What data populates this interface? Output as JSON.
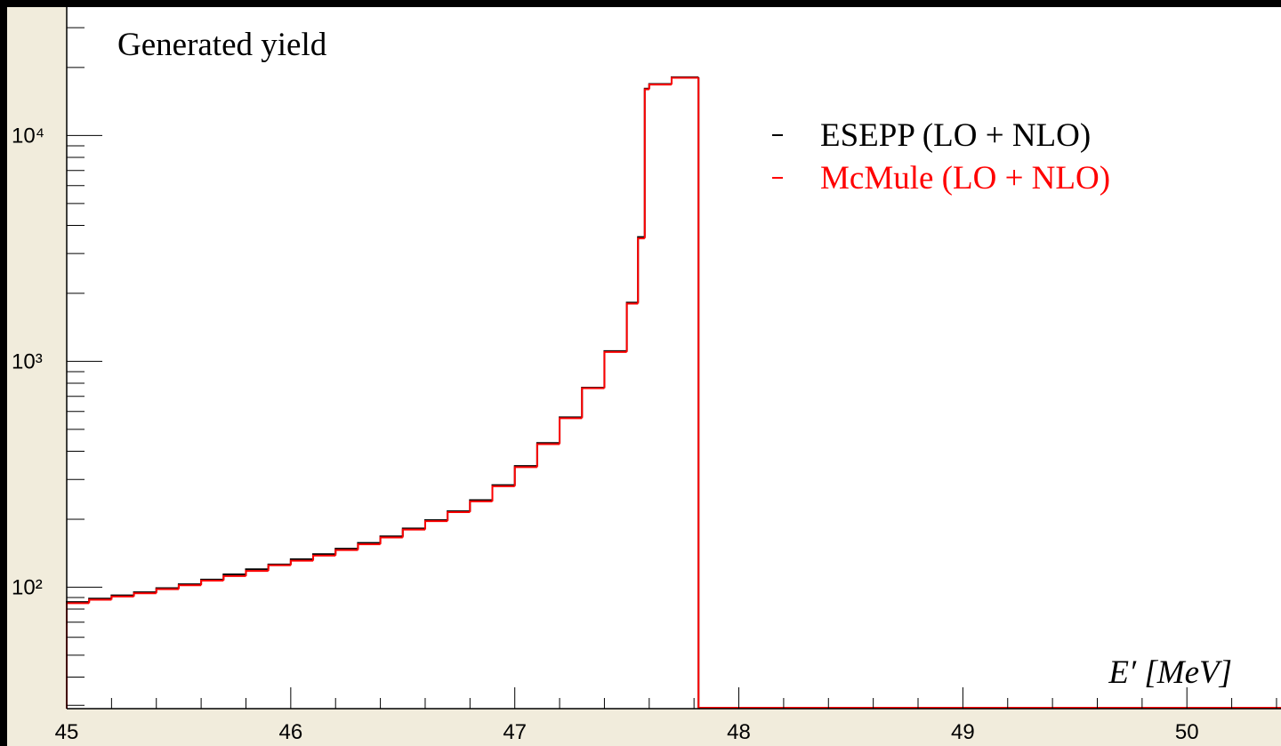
{
  "chart_data": {
    "type": "histogram",
    "title": "Generated yield",
    "x_label": "E′ [MeV]",
    "bins": [
      45.0,
      45.1,
      45.2,
      45.3,
      45.4,
      45.5,
      45.6,
      45.7,
      45.8,
      45.9,
      46.0,
      46.1,
      46.2,
      46.3,
      46.4,
      46.5,
      46.6,
      46.7,
      46.8,
      46.9,
      47.0,
      47.1,
      47.2,
      47.3,
      47.4,
      47.5,
      47.55,
      47.58,
      47.6,
      47.7,
      47.82
    ],
    "series": [
      {
        "name": "ESEPP (LO + NLO)",
        "color": "#000000",
        "values": [
          86,
          89,
          92,
          95,
          99,
          103,
          108,
          114,
          120,
          126,
          133,
          140,
          148,
          157,
          168,
          182,
          198,
          217,
          243,
          283,
          344,
          435,
          565,
          765,
          1110,
          1820,
          3550,
          16100,
          16900,
          18100
        ]
      },
      {
        "name": "McMule (LO + NLO)",
        "color": "#ff0000",
        "values": [
          85,
          88,
          91,
          94,
          98,
          102,
          107,
          112,
          118,
          125,
          131,
          138,
          146,
          155,
          166,
          180,
          196,
          215,
          240,
          280,
          340,
          430,
          560,
          760,
          1100,
          1800,
          3500,
          16000,
          16800,
          18000
        ]
      }
    ],
    "xlim": [
      45,
      50.42
    ],
    "xticks": [
      45,
      46,
      47,
      48,
      49,
      50
    ],
    "xminorticks": [
      45.2,
      45.4,
      45.6,
      45.8,
      46.2,
      46.4,
      46.6,
      46.8,
      47.2,
      47.4,
      47.6,
      47.8,
      48.2,
      48.4,
      48.6,
      48.8,
      49.2,
      49.4,
      49.6,
      49.8,
      50.2,
      50.4
    ],
    "ylim": [
      29,
      37000
    ],
    "log_y": true,
    "yticks": [
      {
        "value": 100,
        "label": "10²"
      },
      {
        "value": 1000,
        "label": "10³"
      },
      {
        "value": 10000,
        "label": "10⁴"
      }
    ],
    "yminorticks": [
      30,
      40,
      50,
      60,
      70,
      80,
      90,
      200,
      300,
      400,
      500,
      600,
      700,
      800,
      900,
      2000,
      3000,
      4000,
      5000,
      6000,
      7000,
      8000,
      9000,
      20000,
      30000
    ],
    "legend": "upper-right"
  }
}
